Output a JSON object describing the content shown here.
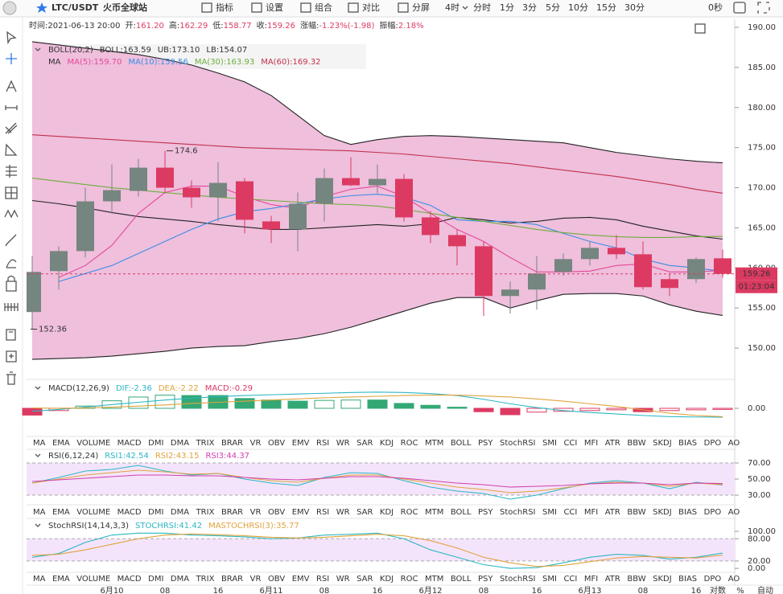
{
  "toolbar": {
    "symbol": "LTC/USDT",
    "exchange": "火币全球站",
    "menu": [
      "指标",
      "设置",
      "组合",
      "对比",
      "分屏"
    ],
    "interval": "4时",
    "periods": [
      "分时",
      "1分",
      "3分",
      "5分",
      "10分",
      "15分",
      "30分"
    ],
    "timer": "0秒"
  },
  "info_bar": [
    {
      "label": "时间:",
      "value": "2021-06-13 20:00"
    },
    {
      "label": "开:",
      "value": "161.20"
    },
    {
      "label": "高:",
      "value": "162.29"
    },
    {
      "label": "低:",
      "value": "158.77"
    },
    {
      "label": "收:",
      "value": "159.26"
    },
    {
      "label": "涨幅:",
      "value": "-1.23%(-1.98)"
    },
    {
      "label": "振幅:",
      "value": "2.18%"
    }
  ],
  "indicator_tabs": [
    "MA",
    "EMA",
    "VOLUME",
    "MACD",
    "DMI",
    "DMA",
    "TRIX",
    "BRAR",
    "VR",
    "OBV",
    "EMV",
    "RSI",
    "WR",
    "SAR",
    "KDJ",
    "ROC",
    "MTM",
    "BOLL",
    "PSY",
    "StochRSI",
    "SMI",
    "CCI",
    "MFI",
    "ATR",
    "BBW",
    "SKDJ",
    "BIAS",
    "DPO",
    "AO"
  ],
  "tab_rows": [
    {
      "active": 3,
      "muted": [
        11,
        19
      ]
    },
    {
      "active": 11,
      "muted": [
        3,
        19
      ]
    },
    {
      "active": 19,
      "muted": [
        3,
        11
      ]
    }
  ],
  "time_controls": [
    "对数",
    "%",
    "自动"
  ],
  "chart_data": [
    {
      "type": "candlestick",
      "legend_title": "BOLL(20,2)",
      "ma_title": "MA",
      "x": [
        null,
        null,
        null,
        "6月10",
        null,
        "08",
        null,
        "16",
        null,
        "6月11",
        null,
        "08",
        null,
        "16",
        null,
        "6月12",
        null,
        "08",
        null,
        "16",
        null,
        "6月13",
        null,
        "08",
        null,
        "16",
        null
      ],
      "open": [
        154.5,
        159.6,
        162.1,
        168.3,
        169.6,
        172.5,
        170,
        168.8,
        170.8,
        165.8,
        164.8,
        168,
        171.2,
        170.3,
        171.1,
        166.3,
        164.1,
        162.7,
        156.5,
        157.3,
        159.5,
        161.1,
        162.5,
        161.7,
        158.6,
        158.6,
        161.2
      ],
      "high": [
        161.5,
        162.7,
        170,
        172.9,
        173.6,
        174.6,
        170.9,
        173.2,
        171.2,
        166.5,
        169.4,
        172.4,
        173.8,
        172.9,
        171.7,
        167.1,
        164.8,
        163.3,
        158.3,
        161.5,
        161.8,
        163.3,
        164.1,
        163.3,
        159.3,
        161.3,
        162.29
      ],
      "low": [
        152.36,
        157.3,
        161.3,
        166.8,
        168.9,
        169.3,
        167.5,
        165.8,
        164.3,
        163.1,
        162.1,
        165.8,
        170.2,
        169.3,
        165.8,
        163.1,
        160.3,
        154,
        154.3,
        154.8,
        159,
        160.3,
        161.1,
        157.3,
        156.5,
        158.1,
        158.77
      ],
      "close": [
        159.5,
        162.1,
        168.3,
        169.7,
        172.5,
        170,
        168.8,
        170.6,
        166,
        164.8,
        168,
        171.2,
        170.3,
        171.1,
        166.3,
        164.1,
        162.7,
        156.5,
        157.3,
        159.3,
        161.1,
        162.5,
        161.7,
        157.6,
        157.5,
        161.1,
        159.26
      ],
      "up_color": "#75857f",
      "down_color": "#dc3a62",
      "band_color": "#efbfdc",
      "series": [
        {
          "name": "BOLL:163.59",
          "group": "boll",
          "color": "#222222",
          "values": [
            168.4,
            168,
            167.5,
            166.9,
            166.4,
            166.1,
            165.8,
            165.4,
            165.1,
            164.8,
            164.8,
            165,
            165.2,
            165.4,
            165.2,
            165.5,
            166.3,
            166,
            165.6,
            165.8,
            166.2,
            166.3,
            166,
            165.2,
            164.6,
            164,
            163.59
          ]
        },
        {
          "name": "UB:173.10",
          "group": "boll",
          "color": "#222222",
          "values": [
            188.2,
            187.8,
            187.4,
            187,
            186.6,
            186,
            185.3,
            184.3,
            183.2,
            181.5,
            179,
            176.5,
            175.4,
            176,
            176.4,
            176.5,
            176.4,
            176.2,
            176,
            175.8,
            175.6,
            175,
            174.4,
            174,
            173.6,
            173.3,
            173.1
          ]
        },
        {
          "name": "LB:154.07",
          "group": "boll",
          "color": "#222222",
          "values": [
            148.6,
            148.7,
            148.8,
            149,
            149.3,
            149.6,
            150,
            150.2,
            150.3,
            150.8,
            151.2,
            151.8,
            152.6,
            153.6,
            154.6,
            155.6,
            156.3,
            156.3,
            155,
            155.9,
            156.7,
            156.8,
            156.8,
            156.5,
            155.4,
            154.6,
            154.07
          ]
        },
        {
          "name": "MA(5):159.70",
          "group": "ma",
          "color": "#e5489a",
          "values": [
            null,
            158.8,
            160.3,
            162.8,
            166.8,
            169.4,
            170.2,
            170.2,
            168.9,
            167.9,
            167.4,
            168.9,
            169.8,
            170.2,
            168.9,
            166.8,
            164.8,
            163.3,
            161.3,
            159.5,
            159.5,
            159.6,
            160.3,
            160.5,
            159.5,
            159.5,
            159.7
          ]
        },
        {
          "name": "MA(10):159.56",
          "group": "ma",
          "color": "#3a8ee6",
          "values": [
            null,
            158.3,
            159.3,
            160.3,
            161.8,
            163.3,
            164.8,
            166.1,
            167,
            167.4,
            168,
            168.6,
            169,
            169.2,
            168.8,
            167.8,
            166,
            165.8,
            165.8,
            165.4,
            164.3,
            163.3,
            162.5,
            161.1,
            160.3,
            160,
            159.56
          ]
        },
        {
          "name": "MA(30):163.93",
          "group": "ma",
          "color": "#6cae3a",
          "values": [
            171.2,
            170.8,
            170.4,
            170,
            169.7,
            169.4,
            169.1,
            168.8,
            168.6,
            168.4,
            168.2,
            168,
            167.9,
            167.7,
            167.3,
            166.8,
            166.3,
            165.8,
            165.3,
            164.8,
            164.4,
            164.1,
            163.9,
            163.8,
            163.8,
            163.9,
            163.93
          ]
        },
        {
          "name": "MA(60):169.32",
          "group": "ma",
          "color": "#c2304c",
          "values": [
            176.6,
            176.4,
            176.2,
            176,
            175.8,
            175.6,
            175.4,
            175.2,
            175,
            174.9,
            174.8,
            174.7,
            174.6,
            174.4,
            174.2,
            173.9,
            173.6,
            173.3,
            173,
            172.6,
            172.2,
            171.8,
            171.4,
            170.9,
            170.4,
            169.8,
            169.32
          ]
        }
      ],
      "ylim": [
        146.3,
        190.6
      ],
      "yticks": [
        {
          "value": 190,
          "label": "190.00"
        },
        {
          "value": 185,
          "label": "185.00"
        },
        {
          "value": 180,
          "label": "180.00"
        },
        {
          "value": 175,
          "label": "175.00"
        },
        {
          "value": 170,
          "label": "170.00"
        },
        {
          "value": 165,
          "label": "165.00"
        },
        {
          "value": 160,
          "label": "160.00"
        },
        {
          "value": 155,
          "label": "155.00"
        },
        {
          "value": 150,
          "label": "150.00"
        }
      ],
      "max_label": "174.6",
      "min_label": "152.36",
      "last_label": "159.26",
      "countdown": "01:23:04"
    },
    {
      "type": "macd",
      "legend_title": "MACD(12,26,9)",
      "histogram_label": "MACD:-0.29",
      "up_color": "#34a874",
      "down_color": "#dc3a62",
      "values": [
        -1.8,
        -0.6,
        0.6,
        2,
        3,
        3.5,
        3.4,
        3.4,
        2.6,
        2.2,
        1.9,
        2.1,
        2.2,
        2.2,
        1.3,
        0.8,
        0.3,
        -0.9,
        -1.7,
        -1,
        -0.8,
        -0.6,
        -0.4,
        -0.9,
        -0.6,
        -0.4,
        -0.29
      ],
      "series": [
        {
          "name": "DIF:-2.36",
          "color": "#2bb7c4",
          "values": [
            -0.8,
            -0.3,
            0.3,
            1,
            1.6,
            2.2,
            2.7,
            3.1,
            3.4,
            3.6,
            3.8,
            4,
            4.2,
            4.3,
            4.2,
            3.9,
            3.4,
            2.4,
            1.2,
            0.2,
            -0.6,
            -1.1,
            -1.5,
            -1.9,
            -2.2,
            -2.3,
            -2.36
          ]
        },
        {
          "name": "DEA:-2.22",
          "color": "#e0a33c",
          "values": [
            0.1,
            0,
            0.1,
            0.3,
            0.6,
            0.9,
            1.3,
            1.6,
            1.9,
            2.2,
            2.5,
            2.8,
            3,
            3.2,
            3.4,
            3.5,
            3.5,
            3.3,
            3,
            2.5,
            1.9,
            1.2,
            0.5,
            -0.4,
            -1.3,
            -1.9,
            -2.22
          ]
        }
      ],
      "ylim": [
        -7.9,
        6.4
      ],
      "yticks": [
        {
          "value": 0,
          "label": "0.00"
        }
      ]
    },
    {
      "type": "oscillator",
      "legend_title": "RSI(6,12,24)",
      "band": [
        30,
        70
      ],
      "band_color": "#f4e4fb",
      "series": [
        {
          "name": "RSI1:42.54",
          "color": "#2bb7c4",
          "values": [
            45,
            52,
            60,
            62,
            67,
            60,
            55,
            57,
            50,
            45,
            42,
            52,
            58,
            57,
            48,
            40,
            35,
            32,
            25,
            30,
            38,
            45,
            48,
            45,
            38,
            46,
            42.54
          ]
        },
        {
          "name": "RSI2:43.15",
          "color": "#e0a33c",
          "values": [
            45,
            50,
            55,
            58,
            61,
            59,
            56,
            57,
            52,
            48,
            46,
            51,
            55,
            55,
            50,
            45,
            40,
            37,
            33,
            35,
            39,
            44,
            46,
            45,
            41,
            45,
            43.15
          ]
        },
        {
          "name": "RSI3:44.37",
          "color": "#d13fae",
          "values": [
            47,
            49,
            51,
            53,
            55,
            55,
            54,
            54,
            52,
            50,
            49,
            51,
            53,
            53,
            51,
            48,
            45,
            43,
            40,
            41,
            42,
            44,
            45,
            45,
            43,
            45,
            44.37
          ]
        }
      ],
      "ylim": [
        16,
        86
      ],
      "yticks": [
        {
          "value": 70,
          "label": "70.00"
        },
        {
          "value": 50,
          "label": "50.00"
        },
        {
          "value": 30,
          "label": "30.00"
        }
      ]
    },
    {
      "type": "oscillator",
      "legend_title": "StochRSI(14,14,3,3)",
      "band": [
        20,
        80
      ],
      "band_color": "#f4e4fb",
      "series": [
        {
          "name": "STOCHRSI:41.42",
          "color": "#2bb7c4",
          "values": [
            30,
            40,
            70,
            90,
            95,
            95,
            90,
            88,
            85,
            80,
            82,
            90,
            92,
            95,
            80,
            50,
            30,
            10,
            0,
            2,
            15,
            30,
            38,
            35,
            25,
            30,
            41.42
          ]
        },
        {
          "name": "MASTOCHRSI(3):35.77",
          "color": "#e0a33c",
          "values": [
            35,
            38,
            50,
            65,
            80,
            90,
            93,
            91,
            88,
            84,
            82,
            84,
            88,
            92,
            88,
            75,
            55,
            30,
            15,
            5,
            8,
            18,
            28,
            32,
            30,
            28,
            35.77
          ]
        }
      ],
      "ylim": [
        -15,
        124
      ],
      "yticks": [
        {
          "value": 100,
          "label": "100.00"
        },
        {
          "value": 80,
          "label": "80.00"
        },
        {
          "value": 20,
          "label": "20.00"
        },
        {
          "value": 0,
          "label": "0.00"
        }
      ]
    }
  ]
}
